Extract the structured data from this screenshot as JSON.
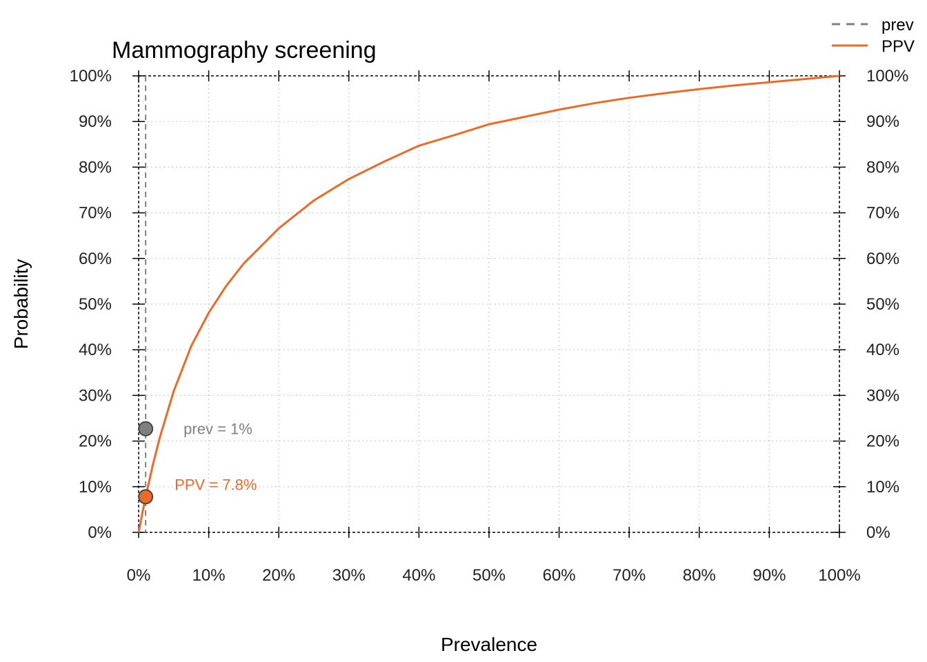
{
  "chart_data": {
    "type": "line",
    "title": "Mammography screening",
    "xlabel": "Prevalence",
    "ylabel": "Probability",
    "xlim": [
      0,
      1
    ],
    "ylim": [
      0,
      1
    ],
    "x_ticks": [
      "0%",
      "10%",
      "20%",
      "30%",
      "40%",
      "50%",
      "60%",
      "70%",
      "80%",
      "90%",
      "100%"
    ],
    "y_ticks": [
      "0%",
      "10%",
      "20%",
      "30%",
      "40%",
      "50%",
      "60%",
      "70%",
      "80%",
      "90%",
      "100%"
    ],
    "grid": true,
    "legend_position": "top-right",
    "legend": [
      {
        "name": "prev",
        "style": "dashed",
        "color": "#808080"
      },
      {
        "name": "PPV",
        "style": "solid",
        "color": "#EE6A24"
      }
    ],
    "series": [
      {
        "name": "PPV",
        "color": "#EE6A24",
        "x": [
          0,
          0.005,
          0.01,
          0.02,
          0.03,
          0.05,
          0.075,
          0.1,
          0.125,
          0.15,
          0.2,
          0.25,
          0.3,
          0.35,
          0.4,
          0.45,
          0.5,
          0.55,
          0.6,
          0.65,
          0.7,
          0.75,
          0.8,
          0.85,
          0.9,
          0.95,
          1.0
        ],
        "values": [
          0,
          0.04,
          0.078,
          0.146,
          0.207,
          0.309,
          0.408,
          0.481,
          0.54,
          0.589,
          0.666,
          0.727,
          0.774,
          0.812,
          0.847,
          0.87,
          0.894,
          0.91,
          0.926,
          0.94,
          0.952,
          0.962,
          0.971,
          0.979,
          0.986,
          0.993,
          1.0
        ]
      }
    ],
    "prevalence_line": {
      "name": "prev",
      "x": 0.01,
      "color": "#808080"
    },
    "points": [
      {
        "name": "prev",
        "x": 0.01,
        "y": 0.227,
        "color": "#808080",
        "label": "prev = 1%"
      },
      {
        "name": "PPV",
        "x": 0.01,
        "y": 0.078,
        "color": "#EE6A24",
        "label": "PPV = 7.8%"
      }
    ]
  }
}
